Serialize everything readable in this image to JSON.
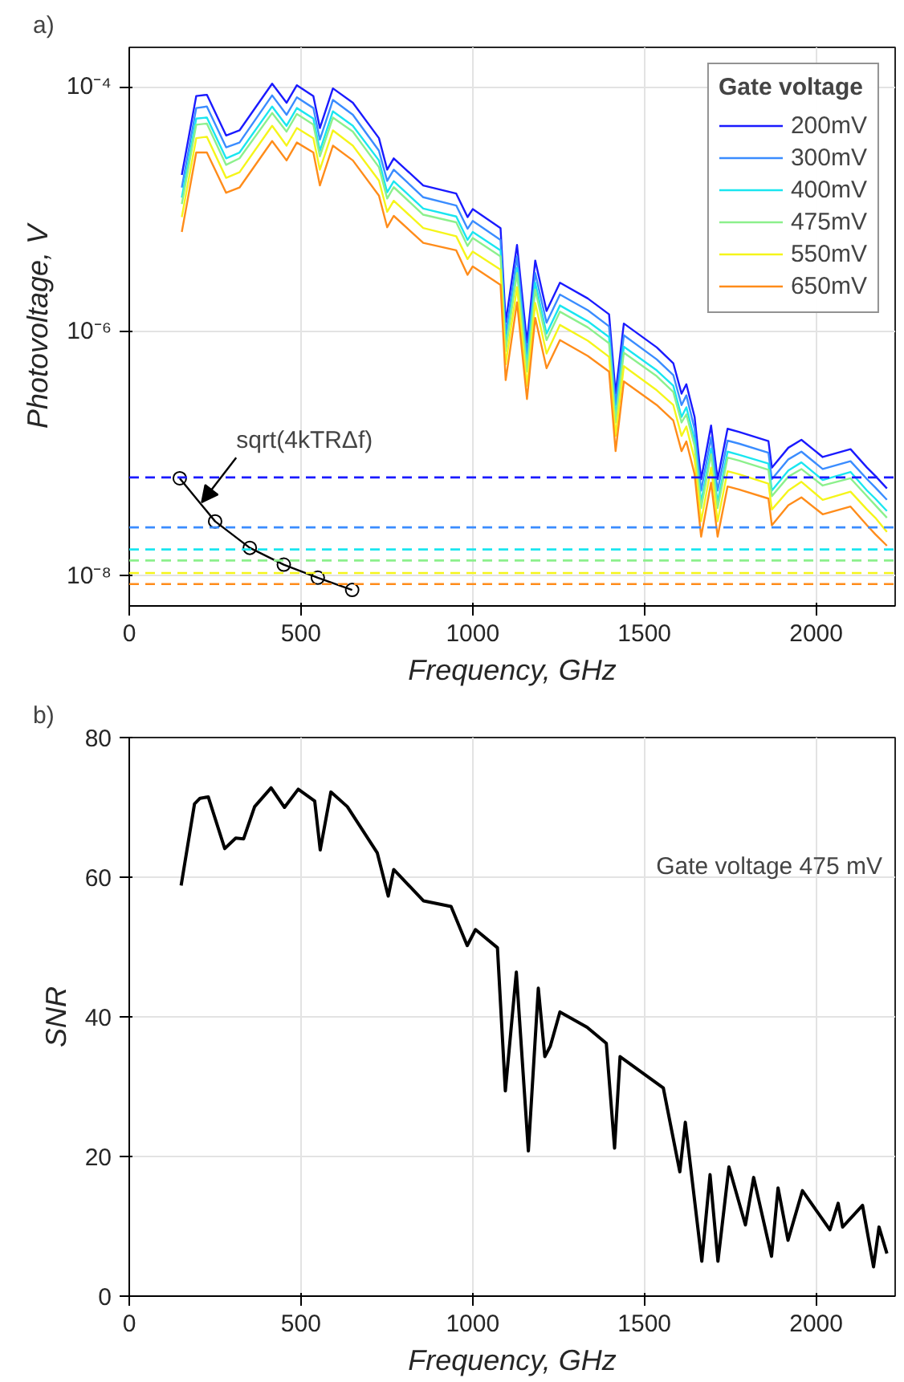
{
  "chart_data": [
    {
      "type": "line",
      "title": "a)",
      "xlabel": "Frequency, GHz",
      "ylabel": "Photovoltage, V",
      "log": "y",
      "grid": true,
      "legend": "top right",
      "legend_title": "Gate voltage",
      "xlim": [
        0,
        2230
      ],
      "xticks": [
        0,
        500,
        1000,
        1500,
        2000
      ],
      "ylim": [
        5.7e-09,
        0.00021
      ],
      "yticks": [
        {
          "value": 1e-08,
          "label": "10⁻⁸"
        },
        {
          "value": 1e-06,
          "label": "10⁻⁶"
        },
        {
          "value": 0.0001,
          "label": "10⁻⁴"
        }
      ],
      "x": [
        153,
        195,
        226,
        282,
        321,
        416,
        458,
        488,
        536,
        555,
        593,
        651,
        727,
        751,
        770,
        856,
        952,
        985,
        1000,
        1081,
        1096,
        1129,
        1158,
        1182,
        1215,
        1254,
        1335,
        1397,
        1416,
        1440,
        1536,
        1584,
        1608,
        1622,
        1646,
        1665,
        1694,
        1713,
        1742,
        1775,
        1861,
        1871,
        1919,
        1957,
        2019,
        2100,
        2148,
        2172,
        2206
      ],
      "series": [
        {
          "name": "200mV",
          "color": "#1a1aff",
          "values": [
            1.9e-05,
            8.4e-05,
            8.6e-05,
            4e-05,
            4.4e-05,
            0.000106,
            7.4e-05,
            0.000103,
            8.4e-05,
            4.6e-05,
            9.7e-05,
            7.4e-05,
            3.8e-05,
            2.1e-05,
            2.6e-05,
            1.56e-05,
            1.34e-05,
            8.6e-06,
            1e-05,
            7e-06,
            1.19e-06,
            5.1e-06,
            8.1e-07,
            3.8e-06,
            1.47e-06,
            2.5e-06,
            1.86e-06,
            1.38e-06,
            3.1e-07,
            1.16e-06,
            7.4e-07,
            5.5e-07,
            3.1e-07,
            3.7e-07,
            2e-07,
            6.2e-08,
            1.7e-07,
            6.2e-08,
            1.6e-07,
            1.51e-07,
            1.27e-07,
            7.7e-08,
            1.12e-07,
            1.3e-07,
            9.4e-08,
            1.09e-07,
            7.7e-08,
            6.6e-08,
            5.2e-08
          ]
        },
        {
          "name": "300mV",
          "color": "#3a8cff",
          "values": [
            1.5e-05,
            6.7e-05,
            6.9e-05,
            3.2e-05,
            3.5e-05,
            8.5e-05,
            5.9e-05,
            8.2e-05,
            6.7e-05,
            3.7e-05,
            7.8e-05,
            5.9e-05,
            3e-05,
            1.7e-05,
            2.1e-05,
            1.25e-05,
            1.07e-05,
            6.9e-06,
            8e-06,
            5.6e-06,
            9.5e-07,
            4.1e-06,
            6.5e-07,
            3e-06,
            1.18e-06,
            2e-06,
            1.49e-06,
            1.1e-06,
            2.5e-07,
            9.3e-07,
            5.9e-07,
            4.4e-07,
            2.5e-07,
            3e-07,
            1.6e-07,
            5e-08,
            1.36e-07,
            5e-08,
            1.28e-07,
            1.21e-07,
            1.02e-07,
            6.2e-08,
            9e-08,
            1.04e-07,
            7.5e-08,
            8.7e-08,
            6.2e-08,
            5.3e-08,
            4.2e-08
          ]
        },
        {
          "name": "400mV",
          "color": "#1ae6f0",
          "values": [
            1.24e-05,
            5.5e-05,
            5.6e-05,
            2.6e-05,
            2.9e-05,
            6.9e-05,
            4.8e-05,
            6.7e-05,
            5.5e-05,
            3e-05,
            6.3e-05,
            4.8e-05,
            2.5e-05,
            1.37e-05,
            1.69e-05,
            1.01e-05,
            8.7e-06,
            5.6e-06,
            6.5e-06,
            4.6e-06,
            7.7e-07,
            3.3e-06,
            5.3e-07,
            2.5e-06,
            9.6e-07,
            1.63e-06,
            1.21e-06,
            9e-07,
            2e-07,
            7.5e-07,
            4.8e-07,
            3.6e-07,
            2e-07,
            2.4e-07,
            1.3e-07,
            4e-08,
            1.1e-07,
            4e-08,
            1.04e-07,
            9.8e-08,
            8.3e-08,
            5e-08,
            7.3e-08,
            8.5e-08,
            6.1e-08,
            7.1e-08,
            5e-08,
            4.3e-08,
            3.4e-08
          ]
        },
        {
          "name": "475mV",
          "color": "#8cf08c",
          "values": [
            1.1e-05,
            4.9e-05,
            5e-05,
            2.3e-05,
            2.6e-05,
            6.1e-05,
            4.3e-05,
            6e-05,
            4.9e-05,
            2.7e-05,
            5.6e-05,
            4.3e-05,
            2.2e-05,
            1.22e-05,
            1.51e-05,
            9e-06,
            7.8e-06,
            5e-06,
            5.8e-06,
            4.1e-06,
            6.9e-07,
            3e-06,
            4.7e-07,
            2.2e-06,
            8.5e-07,
            1.45e-06,
            1.08e-06,
            8e-07,
            1.8e-07,
            6.7e-07,
            4.3e-07,
            3.2e-07,
            1.8e-07,
            2.1e-07,
            1.16e-07,
            3.6e-08,
            9.9e-08,
            3.6e-08,
            9.3e-08,
            8.8e-08,
            7.4e-08,
            4.5e-08,
            6.5e-08,
            7.5e-08,
            5.5e-08,
            6.3e-08,
            4.5e-08,
            3.8e-08,
            3e-08
          ]
        },
        {
          "name": "550mV",
          "color": "#f5f51a",
          "values": [
            8.6e-06,
            3.8e-05,
            3.9e-05,
            1.8e-05,
            2e-05,
            4.8e-05,
            3.3e-05,
            4.6e-05,
            3.8e-05,
            2.1e-05,
            4.4e-05,
            3.3e-05,
            1.71e-05,
            9.5e-06,
            1.17e-05,
            7e-06,
            6e-06,
            3.9e-06,
            4.5e-06,
            3.2e-06,
            5.4e-07,
            2.3e-06,
            3.6e-07,
            1.71e-06,
            6.6e-07,
            1.13e-06,
            8.4e-07,
            6.2e-07,
            1.4e-07,
            5.2e-07,
            3.3e-07,
            2.5e-07,
            1.4e-07,
            1.67e-07,
            9e-08,
            2.8e-08,
            7.7e-08,
            2.8e-08,
            7.2e-08,
            6.8e-08,
            5.7e-08,
            3.5e-08,
            5e-08,
            5.9e-08,
            4.2e-08,
            4.9e-08,
            3.5e-08,
            3e-08,
            2.3e-08
          ]
        },
        {
          "name": "650mV",
          "color": "#ff8c1a",
          "values": [
            6.5e-06,
            2.9e-05,
            2.9e-05,
            1.36e-05,
            1.5e-05,
            3.6e-05,
            2.5e-05,
            3.5e-05,
            2.9e-05,
            1.56e-05,
            3.3e-05,
            2.5e-05,
            1.29e-05,
            7.1e-06,
            8.8e-06,
            5.3e-06,
            4.6e-06,
            2.9e-06,
            3.4e-06,
            2.4e-06,
            4e-07,
            1.73e-06,
            2.8e-07,
            1.29e-06,
            5e-07,
            8.5e-07,
            6.3e-07,
            4.7e-07,
            1.05e-07,
            3.9e-07,
            2.5e-07,
            1.87e-07,
            1.05e-07,
            1.26e-07,
            6.8e-08,
            2.1e-08,
            5.8e-08,
            2.1e-08,
            5.4e-08,
            5.1e-08,
            4.3e-08,
            2.6e-08,
            3.8e-08,
            4.4e-08,
            3.2e-08,
            3.7e-08,
            2.6e-08,
            2.2e-08,
            1.77e-08
          ]
        },
        {
          "color": "#000000",
          "marker": "circle",
          "x": [
            147,
            250,
            351,
            450,
            549,
            649
          ],
          "values": [
            6.3e-08,
            2.8e-08,
            1.7e-08,
            1.24e-08,
            9.7e-09,
            7.7e-09
          ]
        }
      ],
      "ref_lines": [
        {
          "axis": "y",
          "value": 6.4e-08,
          "color": "#1a1aff",
          "line_style": "dashed"
        },
        {
          "axis": "y",
          "value": 2.5e-08,
          "color": "#3a8cff",
          "line_style": "dashed"
        },
        {
          "axis": "y",
          "value": 1.65e-08,
          "color": "#1ae6f0",
          "line_style": "dashed"
        },
        {
          "axis": "y",
          "value": 1.34e-08,
          "color": "#8cf08c",
          "line_style": "dashed"
        },
        {
          "axis": "y",
          "value": 1.06e-08,
          "color": "#f5f51a",
          "line_style": "dashed"
        },
        {
          "axis": "y",
          "value": 8.6e-09,
          "color": "#ff8c1a",
          "line_style": "dashed"
        }
      ],
      "annotations": [
        {
          "text": "sqrt(4kTRΔf)",
          "x": 211,
          "y": 4e-08
        }
      ]
    },
    {
      "type": "line",
      "title": "b)",
      "xlabel": "Frequency, GHz",
      "ylabel": "SNR",
      "grid": true,
      "xlim": [
        0,
        2230
      ],
      "xticks": [
        0,
        500,
        1000,
        1500,
        2000
      ],
      "ylim": [
        0,
        80
      ],
      "yticks": [
        0,
        20,
        40,
        60,
        80
      ],
      "series": [
        {
          "color": "#000000",
          "x": [
            151,
            190,
            206,
            230,
            278,
            310,
            333,
            365,
            413,
            452,
            492,
            540,
            556,
            587,
            635,
            722,
            754,
            770,
            857,
            937,
            984,
            1008,
            1072,
            1095,
            1127,
            1162,
            1191,
            1210,
            1226,
            1254,
            1333,
            1389,
            1413,
            1429,
            1555,
            1603,
            1619,
            1667,
            1691,
            1714,
            1746,
            1794,
            1818,
            1870,
            1889,
            1918,
            1960,
            2040,
            2064,
            2077,
            2135,
            2167,
            2183,
            2206
          ],
          "values": [
            58.8,
            70.5,
            71.3,
            71.5,
            64.1,
            65.6,
            65.5,
            70.1,
            72.8,
            70.0,
            72.6,
            70.9,
            63.9,
            72.2,
            70.1,
            63.5,
            57.3,
            61.1,
            56.6,
            55.8,
            50.2,
            52.5,
            49.9,
            29.4,
            46.4,
            20.8,
            44.1,
            34.3,
            35.8,
            40.7,
            38.5,
            36.2,
            21.2,
            34.3,
            29.8,
            17.8,
            24.9,
            5.0,
            17.4,
            5.0,
            18.5,
            10.2,
            17.0,
            5.7,
            15.5,
            8.0,
            15.1,
            9.5,
            13.3,
            9.9,
            13.0,
            4.2,
            9.9,
            6.1
          ]
        }
      ],
      "annotations": [
        "Gate voltage 475 mV"
      ]
    }
  ]
}
